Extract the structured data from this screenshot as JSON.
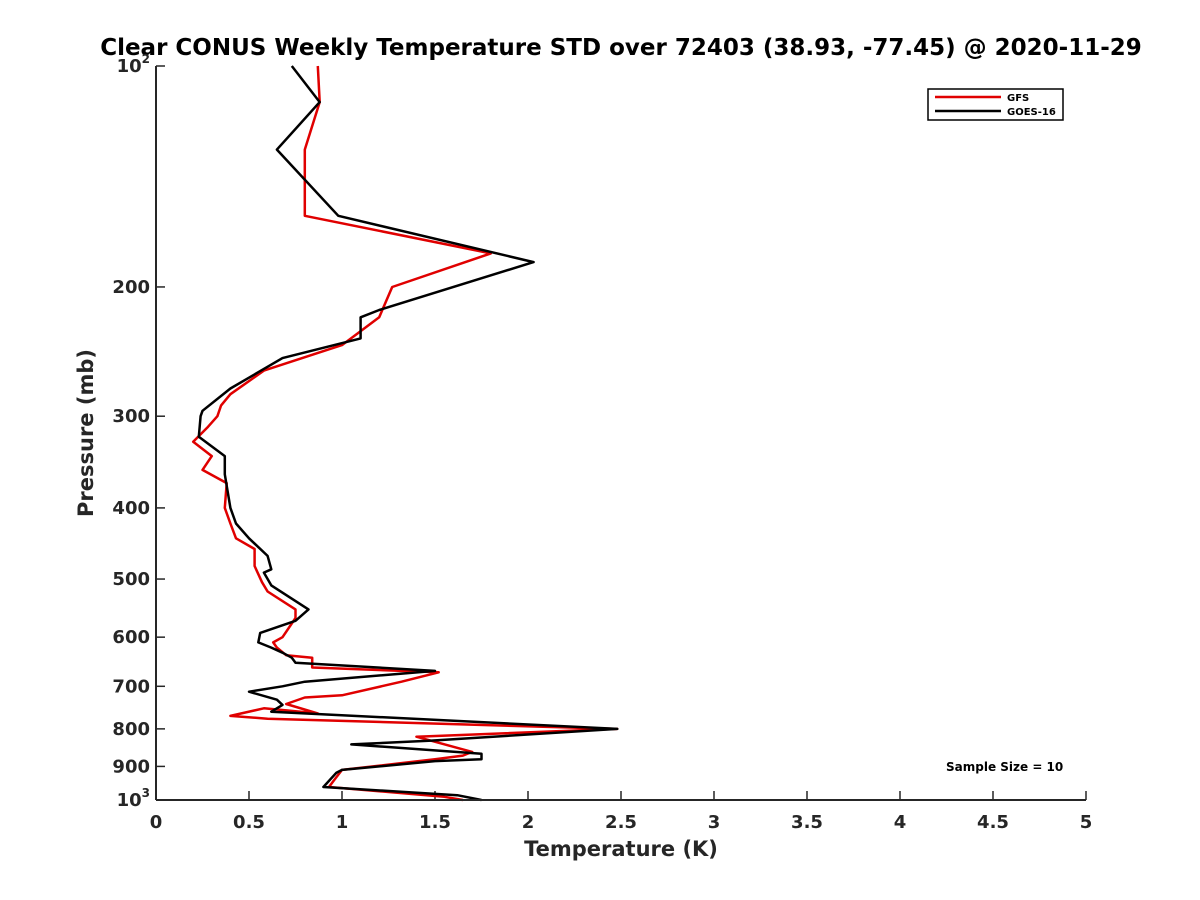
{
  "chart_data": {
    "type": "line",
    "title": "Clear CONUS Weekly Temperature STD over 72403 (38.93, -77.45) @ 2020-11-29",
    "xlabel": "Temperature (K)",
    "ylabel": "Pressure (mb)",
    "xlim": [
      0,
      5
    ],
    "ylim": [
      100,
      1000
    ],
    "y_scale": "log",
    "y_reversed": true,
    "grid": false,
    "legend_position": "top-right",
    "x_ticks": [
      "0",
      "0.5",
      "1",
      "1.5",
      "2",
      "2.5",
      "3",
      "3.5",
      "4",
      "4.5",
      "5"
    ],
    "y_ticks": [
      {
        "value": 100,
        "label": "10",
        "sup": "2"
      },
      {
        "value": 200,
        "label": "200"
      },
      {
        "value": 300,
        "label": "300"
      },
      {
        "value": 400,
        "label": "400"
      },
      {
        "value": 500,
        "label": "500"
      },
      {
        "value": 600,
        "label": "600"
      },
      {
        "value": 700,
        "label": "700"
      },
      {
        "value": 800,
        "label": "800"
      },
      {
        "value": 900,
        "label": "900"
      },
      {
        "value": 1000,
        "label": "10",
        "sup": "3"
      }
    ],
    "annotation": "Sample Size = 10",
    "series": [
      {
        "name": "GFS",
        "color": "#e00000",
        "x": [
          0.87,
          0.88,
          0.8,
          0.8,
          1.8,
          1.27,
          1.2,
          1.0,
          0.58,
          0.4,
          0.35,
          0.33,
          0.28,
          0.2,
          0.3,
          0.25,
          0.38,
          0.37,
          0.4,
          0.43,
          0.53,
          0.53,
          0.57,
          0.6,
          0.75,
          0.75,
          0.68,
          0.63,
          0.65,
          0.7,
          0.84,
          0.84,
          1.52,
          1.32,
          1.0,
          0.8,
          0.7,
          0.87,
          0.58,
          0.4,
          0.6,
          2.48,
          1.4,
          1.7,
          1.65,
          1.5,
          1.0,
          0.95,
          0.93,
          1.55,
          1.65
        ],
        "y": [
          100,
          112,
          130,
          160,
          180,
          200,
          220,
          240,
          260,
          280,
          290,
          300,
          310,
          325,
          340,
          355,
          370,
          400,
          420,
          440,
          455,
          480,
          505,
          520,
          550,
          565,
          600,
          610,
          620,
          635,
          640,
          660,
          670,
          690,
          720,
          725,
          740,
          762,
          750,
          768,
          775,
          800,
          820,
          860,
          870,
          880,
          910,
          945,
          960,
          990,
          1000
        ]
      },
      {
        "name": "GOES-16",
        "color": "#000000",
        "x": [
          0.73,
          0.88,
          0.65,
          0.98,
          2.03,
          1.2,
          1.1,
          1.1,
          0.68,
          0.4,
          0.25,
          0.24,
          0.23,
          0.37,
          0.37,
          0.4,
          0.43,
          0.5,
          0.6,
          0.62,
          0.58,
          0.62,
          0.82,
          0.75,
          0.56,
          0.55,
          0.62,
          0.68,
          0.73,
          0.75,
          1.5,
          0.8,
          0.68,
          0.5,
          0.65,
          0.68,
          0.62,
          2.48,
          1.48,
          1.05,
          1.75,
          1.75,
          1.5,
          1.0,
          0.97,
          0.9,
          1.62,
          1.75
        ],
        "y": [
          100,
          112,
          130,
          160,
          185,
          215,
          220,
          235,
          250,
          275,
          295,
          300,
          320,
          340,
          360,
          400,
          420,
          440,
          465,
          485,
          490,
          510,
          550,
          570,
          592,
          610,
          620,
          630,
          640,
          650,
          667,
          690,
          700,
          712,
          730,
          742,
          758,
          800,
          830,
          840,
          865,
          880,
          885,
          910,
          918,
          960,
          985,
          1000
        ]
      }
    ]
  }
}
